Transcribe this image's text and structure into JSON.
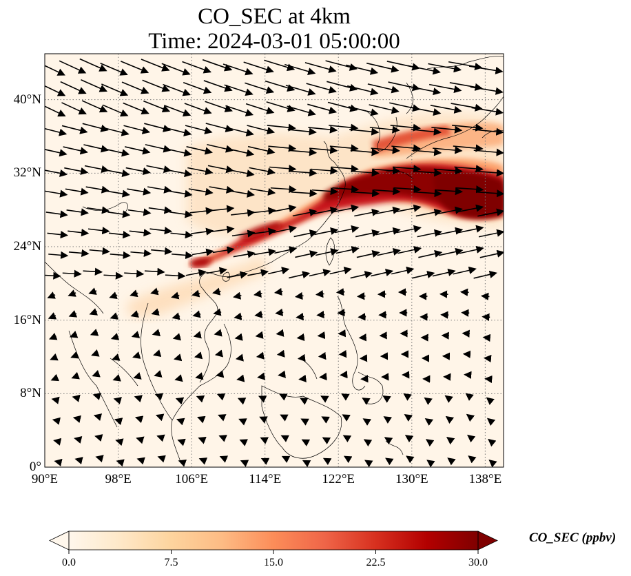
{
  "title": "CO_SEC at 4km",
  "subtitle": "Time: 2024-03-01 05:00:00",
  "map": {
    "variable": "CO_SEC",
    "level": "4km",
    "extent": {
      "lon_min": 90,
      "lon_max": 140,
      "lat_min": 0,
      "lat_max": 45
    },
    "gridlines": "dotted",
    "lon_ticks": [
      "90°E",
      "98°E",
      "106°E",
      "114°E",
      "122°E",
      "130°E",
      "138°E"
    ],
    "lat_ticks": [
      "0°",
      "8°N",
      "16°N",
      "24°N",
      "32°N",
      "40°N"
    ],
    "plume_note_lonlat": [
      [
        106,
        22.5
      ],
      [
        112,
        25.5
      ],
      [
        120,
        29
      ],
      [
        127,
        32
      ],
      [
        135,
        30
      ]
    ]
  },
  "colorbar": {
    "label": "CO_SEC (ppbv)",
    "ticks": [
      "0.0",
      "7.5",
      "15.0",
      "22.5",
      "30.0"
    ],
    "min": 0,
    "max": 30,
    "colors": [
      "#fff7ec",
      "#fee8c8",
      "#fdd49e",
      "#fdbb84",
      "#fc8d59",
      "#ef6548",
      "#d7301f",
      "#b30000",
      "#7f0000"
    ],
    "extend": "both"
  }
}
